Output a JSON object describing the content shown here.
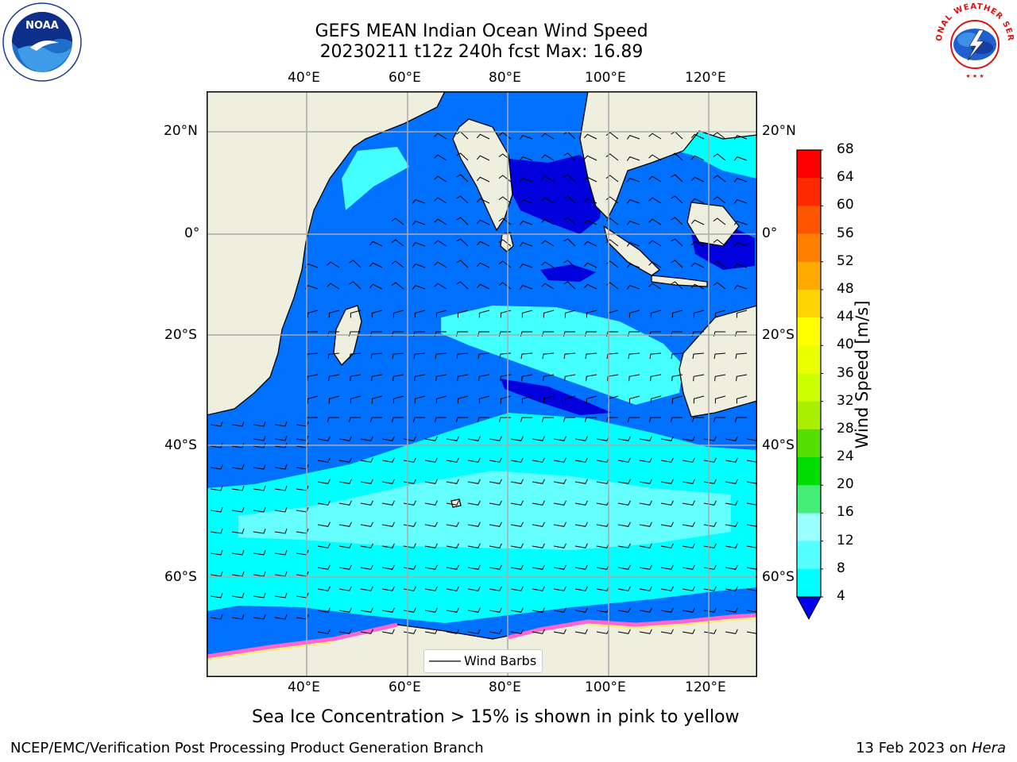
{
  "title_line1": "GEFS MEAN Indian Ocean Wind Speed",
  "title_line2": "20230211 t12z 240h fcst   Max: 16.89",
  "lon_labels": [
    "40°E",
    "60°E",
    "80°E",
    "100°E",
    "120°E"
  ],
  "lat_labels": [
    "20°N",
    "0°",
    "20°S",
    "40°S",
    "60°S"
  ],
  "colorbar": {
    "label": "Wind Speed [m/s]",
    "ticks": [
      "68",
      "64",
      "60",
      "56",
      "52",
      "48",
      "44",
      "40",
      "36",
      "32",
      "28",
      "24",
      "20",
      "16",
      "12",
      "8",
      "4"
    ],
    "colors": [
      "#ff0000",
      "#ff2a00",
      "#ff5500",
      "#ff8000",
      "#ffaa00",
      "#ffd400",
      "#ffff00",
      "#eaff00",
      "#ccff00",
      "#aaee00",
      "#55dd00",
      "#00dd00",
      "#44ee77",
      "#99ffff",
      "#55ffff",
      "#00ffff",
      "#0077ff"
    ],
    "underflow_color": "#0000ee"
  },
  "legend_label": "Wind Barbs",
  "caption": "Sea Ice Concentration > 15% is shown in pink to yellow",
  "footer_left": "NCEP/EMC/Verification Post Processing Product Generation Branch",
  "footer_right_prefix": "13 Feb 2023 on ",
  "footer_right_host": "Hera",
  "logos": {
    "left": "NOAA",
    "right": "NATIONAL WEATHER SERVICE"
  },
  "colors": {
    "land": "#efefdf",
    "ocean_low": "#0070ff",
    "ocean_high": "#00ffff",
    "ocean_calm": "#0000dd",
    "grid": "#aaaaaa"
  }
}
